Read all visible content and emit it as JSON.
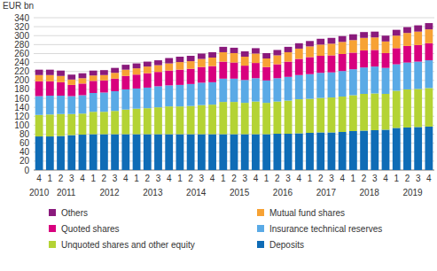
{
  "chart_data": {
    "type": "bar",
    "stacked": true,
    "y_label": "EUR bn",
    "categories": [
      "4",
      "1",
      "2",
      "3",
      "4",
      "1",
      "2",
      "3",
      "4",
      "1",
      "2",
      "3",
      "4",
      "1",
      "2",
      "3",
      "4",
      "1",
      "2",
      "3",
      "4",
      "1",
      "2",
      "3",
      "4",
      "1",
      "2",
      "3",
      "4",
      "1",
      "2",
      "3",
      "4",
      "1",
      "2",
      "3",
      "4"
    ],
    "year_groups": [
      {
        "label": "2010",
        "count": 1
      },
      {
        "label": "2011",
        "count": 4
      },
      {
        "label": "2012",
        "count": 4
      },
      {
        "label": "2013",
        "count": 4
      },
      {
        "label": "2014",
        "count": 4
      },
      {
        "label": "2015",
        "count": 4
      },
      {
        "label": "2016",
        "count": 4
      },
      {
        "label": "2017",
        "count": 4
      },
      {
        "label": "2018",
        "count": 4
      },
      {
        "label": "2019",
        "count": 4
      }
    ],
    "series": [
      {
        "name": "Deposits",
        "color": "#0f6cb6",
        "values": [
          75,
          75,
          76,
          78,
          79,
          80,
          80,
          80,
          80,
          80,
          80,
          80,
          80,
          80,
          80,
          80,
          80,
          80,
          80,
          80,
          80,
          80,
          81,
          81,
          82,
          83,
          84,
          84,
          85,
          87,
          88,
          89,
          90,
          94,
          95,
          96,
          97
        ]
      },
      {
        "name": "Unquoted shares and other equity",
        "color": "#b4d334",
        "values": [
          48,
          49,
          49,
          47,
          47,
          50,
          50,
          52,
          55,
          57,
          58,
          60,
          62,
          62,
          63,
          65,
          66,
          72,
          72,
          70,
          73,
          70,
          72,
          74,
          76,
          76,
          77,
          78,
          79,
          80,
          82,
          82,
          80,
          83,
          85,
          85,
          86
        ]
      },
      {
        "name": "Insurance technical reserves",
        "color": "#5aaae6",
        "values": [
          42,
          42,
          41,
          40,
          41,
          42,
          43,
          44,
          45,
          45,
          46,
          47,
          47,
          48,
          49,
          50,
          50,
          52,
          52,
          51,
          52,
          50,
          52,
          53,
          54,
          55,
          56,
          56,
          57,
          58,
          59,
          60,
          58,
          59,
          60,
          61,
          62
        ]
      },
      {
        "name": "Quoted shares",
        "color": "#d8007e",
        "values": [
          33,
          32,
          30,
          25,
          26,
          27,
          27,
          28,
          30,
          31,
          32,
          32,
          33,
          34,
          34,
          35,
          36,
          38,
          36,
          32,
          34,
          30,
          31,
          34,
          36,
          38,
          38,
          38,
          38,
          37,
          38,
          37,
          33,
          36,
          37,
          37,
          38
        ]
      },
      {
        "name": "Mutual fund shares",
        "color": "#f7a234",
        "values": [
          14,
          14,
          14,
          12,
          12,
          12,
          12,
          13,
          14,
          14,
          15,
          15,
          16,
          17,
          17,
          18,
          19,
          21,
          21,
          20,
          21,
          19,
          20,
          21,
          23,
          24,
          25,
          26,
          27,
          28,
          28,
          28,
          26,
          28,
          29,
          30,
          31
        ]
      },
      {
        "name": "Others",
        "color": "#8a1a7c",
        "values": [
          12,
          12,
          12,
          11,
          11,
          11,
          11,
          11,
          11,
          11,
          11,
          11,
          12,
          12,
          12,
          12,
          12,
          12,
          12,
          12,
          12,
          12,
          12,
          12,
          12,
          12,
          13,
          13,
          13,
          13,
          13,
          13,
          13,
          13,
          13,
          14,
          14
        ]
      }
    ],
    "ylim": [
      0,
      340
    ],
    "yticks": [
      0,
      20,
      40,
      60,
      80,
      100,
      120,
      140,
      160,
      180,
      200,
      220,
      240,
      260,
      280,
      300,
      320,
      340
    ],
    "grid": true,
    "legend": "bottom"
  }
}
